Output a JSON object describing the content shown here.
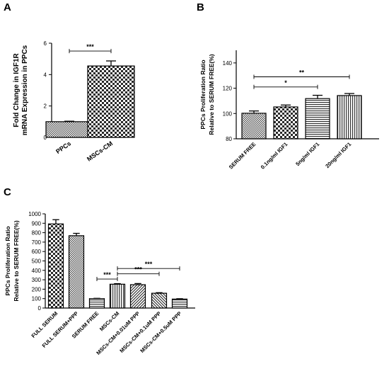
{
  "chart_data": [
    {
      "panel": "A",
      "type": "bar",
      "ylabel": [
        "Fold Change in IGF1R",
        "mRNA Expression in PPCs"
      ],
      "ylim": [
        0,
        6
      ],
      "yticks": [
        "0",
        "2",
        "4",
        "6"
      ],
      "categories": [
        "PPCs",
        "MSCs-CM"
      ],
      "values": [
        1.0,
        4.55
      ],
      "errors": [
        0.03,
        0.32
      ],
      "patterns": [
        "fine-check",
        "check"
      ],
      "significance": [
        {
          "from": 0,
          "to": 1,
          "label": "***",
          "y": 5.5
        }
      ]
    },
    {
      "panel": "B",
      "type": "bar",
      "ylabel": [
        "PPCs Proliferation Ratio",
        "Relative to SERUM FREE(%)"
      ],
      "ylim": [
        80,
        150
      ],
      "yticks": [
        "80",
        "100",
        "120",
        "140"
      ],
      "categories": [
        "SERUM FREE",
        "0.1ng/ml IGF1",
        "5ng/ml IGF1",
        "20ng/ml IGF1"
      ],
      "values": [
        100.2,
        105.2,
        111.8,
        114.2
      ],
      "errors": [
        1.8,
        1.5,
        2.6,
        1.6
      ],
      "patterns": [
        "fine-check",
        "check",
        "hlines",
        "vlines"
      ],
      "significance": [
        {
          "from": 0,
          "to": 2,
          "label": "*",
          "y": 121
        },
        {
          "from": 0,
          "to": 3,
          "label": "**",
          "y": 129
        }
      ]
    },
    {
      "panel": "C",
      "type": "bar",
      "ylabel": [
        "PPCs Proliferation Ratio",
        "Relative to SERUM FREE(%)"
      ],
      "ylim": [
        0,
        1000
      ],
      "yticks": [
        "0",
        "100",
        "200",
        "300",
        "400",
        "500",
        "600",
        "700",
        "800",
        "900",
        "1000"
      ],
      "categories": [
        "FULL SERUM",
        "FULL SERUM+PPP",
        "SERUM FREE",
        "MSCs-CM",
        "MSCs-CM+0.01uM PPP",
        "MSCs-CM+0.1uM PPP",
        "MSCs-CM+0.5uM PPP"
      ],
      "values": [
        893,
        768,
        100,
        253,
        248,
        157,
        95
      ],
      "errors": [
        45,
        25,
        3,
        6,
        12,
        6,
        4
      ],
      "patterns": [
        "check",
        "fine-check",
        "hlines",
        "vlines",
        "diag-up",
        "diag-down",
        "hlines"
      ],
      "significance": [
        {
          "from": 2,
          "to": 3,
          "label": "***",
          "y": 308
        },
        {
          "from": 3,
          "to": 5,
          "label": "***",
          "y": 363
        },
        {
          "from": 3,
          "to": 6,
          "label": "***",
          "y": 420
        }
      ]
    }
  ]
}
